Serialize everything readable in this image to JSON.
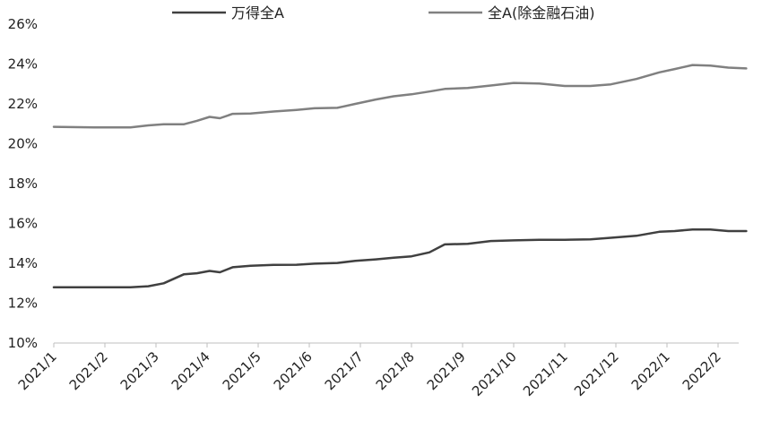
{
  "chart_data": {
    "type": "line",
    "title": "",
    "xlabel": "",
    "ylabel": "",
    "ylim": [
      10,
      26
    ],
    "yticks": [
      "10%",
      "12%",
      "14%",
      "16%",
      "18%",
      "20%",
      "22%",
      "24%",
      "26%"
    ],
    "categories": [
      "2021/1",
      "2021/2",
      "2021/3",
      "2021/4",
      "2021/5",
      "2021/6",
      "2021/7",
      "2021/8",
      "2021/9",
      "2021/10",
      "2021/11",
      "2021/12",
      "2022/1",
      "2022/2"
    ],
    "grid": false,
    "legend_position": "top",
    "series": [
      {
        "name": "万得全A",
        "color": "#404040",
        "points": [
          [
            0.0,
            12.8
          ],
          [
            0.8,
            12.8
          ],
          [
            1.5,
            12.8
          ],
          [
            1.85,
            12.85
          ],
          [
            2.15,
            13.0
          ],
          [
            2.55,
            13.45
          ],
          [
            2.8,
            13.5
          ],
          [
            3.05,
            13.62
          ],
          [
            3.25,
            13.55
          ],
          [
            3.5,
            13.8
          ],
          [
            3.85,
            13.88
          ],
          [
            4.3,
            13.92
          ],
          [
            4.75,
            13.93
          ],
          [
            5.1,
            13.98
          ],
          [
            5.55,
            14.02
          ],
          [
            5.9,
            14.12
          ],
          [
            6.3,
            14.2
          ],
          [
            6.65,
            14.28
          ],
          [
            7.0,
            14.35
          ],
          [
            7.35,
            14.55
          ],
          [
            7.65,
            14.95
          ],
          [
            8.1,
            14.98
          ],
          [
            8.55,
            15.12
          ],
          [
            9.0,
            15.15
          ],
          [
            9.5,
            15.18
          ],
          [
            10.0,
            15.18
          ],
          [
            10.5,
            15.2
          ],
          [
            10.9,
            15.28
          ],
          [
            11.4,
            15.38
          ],
          [
            11.85,
            15.58
          ],
          [
            12.15,
            15.62
          ],
          [
            12.5,
            15.7
          ],
          [
            12.85,
            15.7
          ],
          [
            13.2,
            15.62
          ],
          [
            13.55,
            15.62
          ]
        ]
      },
      {
        "name": "全A(除金融石油)",
        "color": "#808080",
        "points": [
          [
            0.0,
            20.85
          ],
          [
            0.8,
            20.82
          ],
          [
            1.5,
            20.82
          ],
          [
            1.85,
            20.92
          ],
          [
            2.15,
            20.98
          ],
          [
            2.55,
            20.98
          ],
          [
            2.8,
            21.15
          ],
          [
            3.05,
            21.35
          ],
          [
            3.25,
            21.28
          ],
          [
            3.5,
            21.5
          ],
          [
            3.85,
            21.52
          ],
          [
            4.3,
            21.62
          ],
          [
            4.75,
            21.7
          ],
          [
            5.1,
            21.78
          ],
          [
            5.55,
            21.8
          ],
          [
            5.9,
            22.0
          ],
          [
            6.3,
            22.22
          ],
          [
            6.65,
            22.38
          ],
          [
            7.0,
            22.48
          ],
          [
            7.35,
            22.62
          ],
          [
            7.65,
            22.75
          ],
          [
            8.1,
            22.8
          ],
          [
            8.55,
            22.92
          ],
          [
            9.0,
            23.05
          ],
          [
            9.5,
            23.02
          ],
          [
            10.0,
            22.9
          ],
          [
            10.5,
            22.9
          ],
          [
            10.9,
            22.98
          ],
          [
            11.4,
            23.25
          ],
          [
            11.85,
            23.58
          ],
          [
            12.15,
            23.75
          ],
          [
            12.5,
            23.95
          ],
          [
            12.85,
            23.92
          ],
          [
            13.2,
            23.82
          ],
          [
            13.55,
            23.78
          ]
        ]
      }
    ]
  }
}
